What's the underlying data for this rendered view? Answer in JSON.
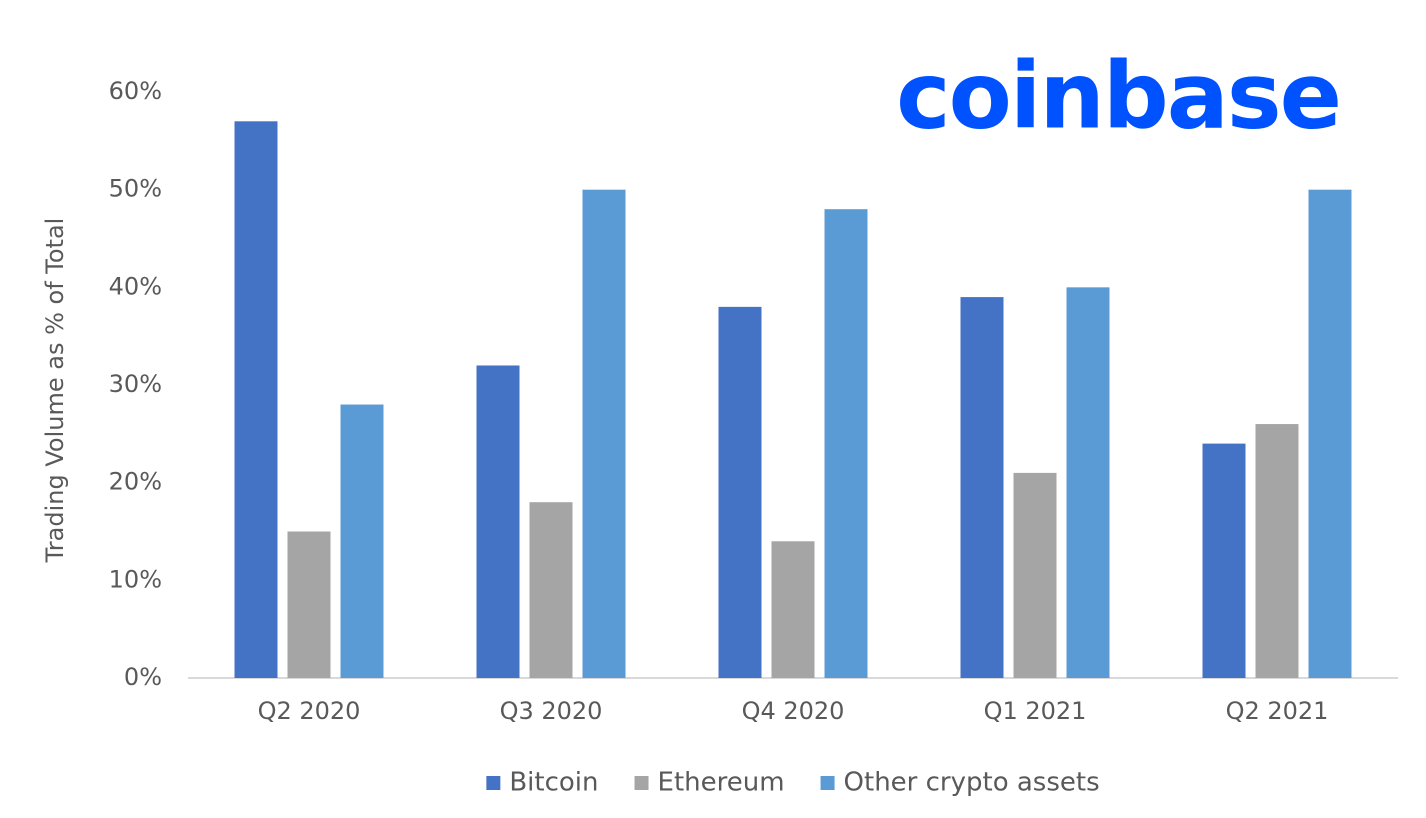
{
  "chart_data": {
    "type": "bar",
    "logo": "coinbase",
    "y_label": "Trading Volume as % of Total",
    "categories": [
      "Q2 2020",
      "Q3 2020",
      "Q4 2020",
      "Q1 2021",
      "Q2 2021"
    ],
    "series": [
      {
        "name": "Bitcoin",
        "color": "#4472c4",
        "values": [
          57,
          32,
          38,
          39,
          24
        ]
      },
      {
        "name": "Ethereum",
        "color": "#a5a5a5",
        "values": [
          15,
          18,
          14,
          21,
          26
        ]
      },
      {
        "name": "Other crypto assets",
        "color": "#5b9bd5",
        "values": [
          28,
          50,
          48,
          40,
          50
        ]
      }
    ],
    "ylim": [
      0,
      60
    ],
    "yticks": [
      {
        "value": 0,
        "label": "0%"
      },
      {
        "value": 10,
        "label": "10%"
      },
      {
        "value": 20,
        "label": "20%"
      },
      {
        "value": 30,
        "label": "30%"
      },
      {
        "value": 40,
        "label": "40%"
      },
      {
        "value": 50,
        "label": "50%"
      },
      {
        "value": 60,
        "label": "60%"
      }
    ],
    "grid": false,
    "legend": "bottom"
  }
}
